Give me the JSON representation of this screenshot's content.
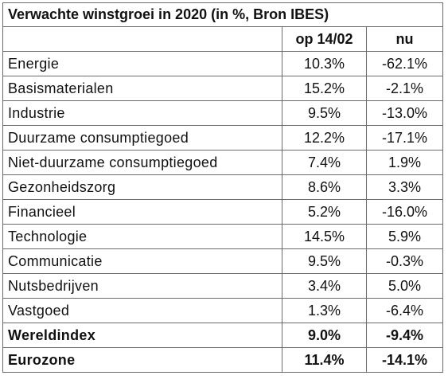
{
  "table": {
    "title": "Verwachte winstgroei in 2020 (in %, Bron IBES)",
    "header": [
      "op 14/02",
      "nu"
    ],
    "rows": [
      [
        "Energie",
        "10.3%",
        "-62.1%"
      ],
      [
        "Basismaterialen",
        "15.2%",
        "-2.1%"
      ],
      [
        "Industrie",
        "9.5%",
        "-13.0%"
      ],
      [
        "Duurzame consumptiegoed",
        "12.2%",
        "-17.1%"
      ],
      [
        "Niet-duurzame consumptiegoed",
        "7.4%",
        "1.9%"
      ],
      [
        "Gezonheidszorg",
        "8.6%",
        "3.3%"
      ],
      [
        "Financieel",
        "5.2%",
        "-16.0%"
      ],
      [
        "Technologie",
        "14.5%",
        "5.9%"
      ],
      [
        "Communicatie",
        "9.5%",
        "-0.3%"
      ],
      [
        "Nutsbedrijven",
        "3.4%",
        "5.0%"
      ],
      [
        "Vastgoed",
        "1.3%",
        "-6.4%"
      ],
      [
        "Wereldindex",
        "9.0%",
        "-9.4%"
      ],
      [
        "Eurozone",
        "11.4%",
        "-14.1%"
      ]
    ]
  }
}
